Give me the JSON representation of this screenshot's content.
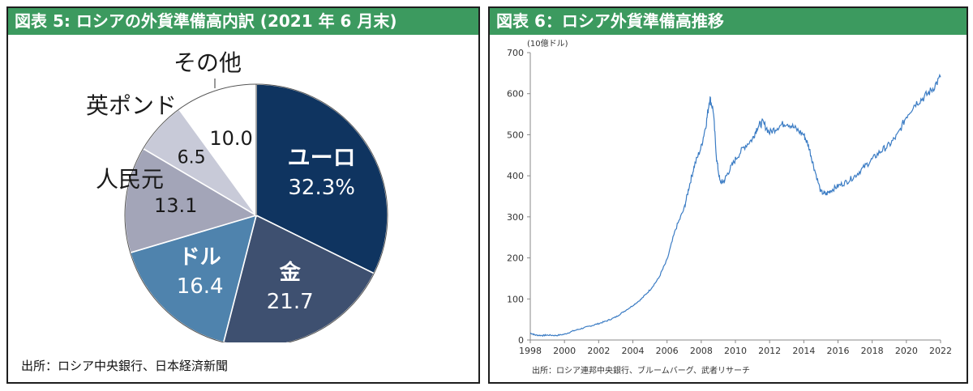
{
  "colors": {
    "header_bg": "#3c9a5f",
    "euro": "#0f3460",
    "gold": "#3e5070",
    "dollar": "#4f83ad",
    "yuan": "#a3a5b8",
    "pound": "#c8cad8",
    "other": "#ffffff",
    "line": "#3b7cc4"
  },
  "left_panel": {
    "title": "図表 5: ロシアの外貨準備高内訳 (2021 年 6 月末)",
    "source": "出所：ロシア中央銀行、日本経済新聞"
  },
  "right_panel": {
    "title": "図表 6：ロシア外貨準備高推移",
    "source": "出所：ロシア連邦中央銀行、ブルームバーグ、武者リサーチ"
  },
  "chart_data": [
    {
      "type": "pie",
      "slices": [
        {
          "label": "ユーロ",
          "value": 32.3,
          "value_text": "32.3%",
          "color": "#0f3460"
        },
        {
          "label": "金",
          "value": 21.7,
          "value_text": "21.7",
          "color": "#3e5070"
        },
        {
          "label": "ドル",
          "value": 16.4,
          "value_text": "16.4",
          "color": "#4f83ad"
        },
        {
          "label": "人民元",
          "value": 13.1,
          "value_text": "13.1",
          "color": "#a3a5b8"
        },
        {
          "label": "英ポンド",
          "value": 6.5,
          "value_text": "6.5",
          "color": "#c8cad8"
        },
        {
          "label": "その他",
          "value": 10.0,
          "value_text": "10.0",
          "color": "#ffffff"
        }
      ]
    },
    {
      "type": "line",
      "ylabel": "(10億ドル)",
      "ylim": [
        0,
        700
      ],
      "xlim": [
        1998,
        2022
      ],
      "yticks": [
        0,
        100,
        200,
        300,
        400,
        500,
        600,
        700
      ],
      "xticks": [
        1998,
        2000,
        2002,
        2004,
        2006,
        2008,
        2010,
        2012,
        2014,
        2016,
        2018,
        2020,
        2022
      ],
      "series": [
        {
          "x": [
            1998.0,
            1998.3,
            1998.7,
            1999.0,
            1999.5,
            2000.0,
            2000.5,
            2001.0,
            2001.5,
            2002.0,
            2002.5,
            2003.0,
            2003.5,
            2004.0,
            2004.5,
            2005.0,
            2005.5,
            2006.0,
            2006.5,
            2007.0,
            2007.3,
            2007.6,
            2008.0,
            2008.3,
            2008.5,
            2008.7,
            2008.9,
            2009.1,
            2009.3,
            2009.6,
            2010.0,
            2010.5,
            2011.0,
            2011.3,
            2011.6,
            2012.0,
            2012.5,
            2013.0,
            2013.5,
            2014.0,
            2014.3,
            2014.6,
            2015.0,
            2015.3,
            2015.6,
            2016.0,
            2016.5,
            2017.0,
            2017.5,
            2018.0,
            2018.5,
            2019.0,
            2019.5,
            2020.0,
            2020.5,
            2021.0,
            2021.5,
            2022.0
          ],
          "y": [
            17,
            12,
            11,
            12,
            11,
            14,
            22,
            28,
            34,
            40,
            47,
            56,
            70,
            84,
            100,
            122,
            150,
            195,
            270,
            320,
            375,
            425,
            470,
            530,
            590,
            560,
            440,
            385,
            385,
            410,
            440,
            470,
            490,
            520,
            530,
            505,
            520,
            530,
            515,
            500,
            470,
            420,
            360,
            355,
            365,
            375,
            385,
            400,
            420,
            440,
            460,
            475,
            500,
            545,
            575,
            590,
            610,
            640
          ]
        }
      ]
    }
  ]
}
